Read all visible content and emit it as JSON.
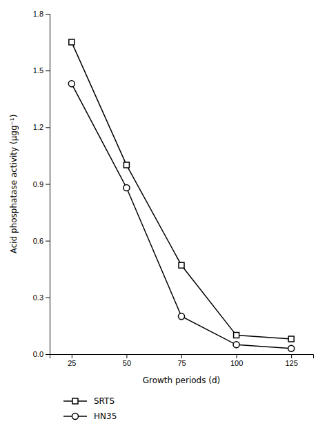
{
  "chart_data": {
    "type": "line",
    "x": [
      25,
      50,
      75,
      100,
      125
    ],
    "series": [
      {
        "name": "SRTS",
        "color": "#000000",
        "marker": "square",
        "values": [
          1.65,
          1.0,
          0.47,
          0.1,
          0.08
        ]
      },
      {
        "name": "HN35",
        "color": "#000000",
        "marker": "circle",
        "values": [
          1.43,
          0.88,
          0.2,
          0.05,
          0.03
        ]
      }
    ],
    "xlabel": "Growth periods (d)",
    "ylabel": "Acid phosphatase activity (μgg⁻¹)",
    "xlim": [
      15,
      135
    ],
    "xticks": [
      25,
      50,
      75,
      100,
      125
    ],
    "ylim": [
      0,
      1.8
    ],
    "yticks": [
      {
        "value": 0,
        "label": "0.0"
      },
      0.3,
      0.6,
      0.9,
      1.2,
      1.5,
      1.8
    ],
    "grid": false,
    "legend": "bottom"
  }
}
